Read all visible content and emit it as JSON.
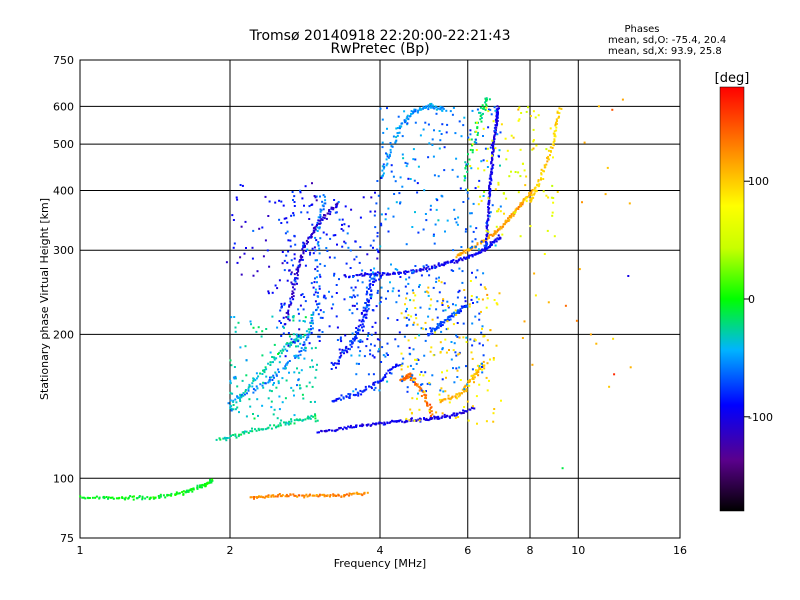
{
  "chart_data": {
    "type": "scatter",
    "title": "Tromsø 20140918 22:20:00-22:21:43",
    "subtitle": "RwPretec (Bp)",
    "xlabel": "Frequency [MHz]",
    "ylabel": "Stationary phase Virtual Height [km]",
    "x_scale": "log",
    "y_scale": "log",
    "xlim": [
      1,
      16
    ],
    "ylim": [
      75,
      750
    ],
    "x_ticks": [
      "1",
      "2",
      "4",
      "6",
      "8",
      "10",
      "16"
    ],
    "x_tick_values": [
      1,
      2,
      4,
      6,
      8,
      10,
      16
    ],
    "y_ticks": [
      "75",
      "100",
      "200",
      "300",
      "400",
      "500",
      "600",
      "750"
    ],
    "y_tick_values": [
      75,
      100,
      200,
      300,
      400,
      500,
      600,
      750
    ],
    "grid": true,
    "phases_box": {
      "title": "Phases",
      "line_o": "mean, sd,O: -75.4, 20.4",
      "line_x": "mean, sd,X: 93.9, 25.8"
    },
    "colorbar": {
      "label": "[deg]",
      "range": [
        -180,
        180
      ],
      "ticks": [
        "100",
        "0",
        "-100"
      ],
      "tick_values": [
        100,
        0,
        -100
      ],
      "colormap": "rainbow (black-purple-blue-cyan-green-yellow-orange-red)"
    },
    "traces": [
      {
        "name": "",
        "phase": -5,
        "spread": 0.012,
        "points": [
          [
            1.0,
            91
          ],
          [
            1.2,
            91
          ],
          [
            1.4,
            91
          ],
          [
            1.6,
            93
          ],
          [
            1.75,
            96
          ],
          [
            1.85,
            99
          ]
        ]
      },
      {
        "name": "",
        "phase": 130,
        "spread": 0.01,
        "points": [
          [
            2.2,
            91
          ],
          [
            2.5,
            92
          ],
          [
            2.9,
            92
          ],
          [
            3.3,
            92
          ],
          [
            3.8,
            93
          ]
        ]
      },
      {
        "name": "",
        "phase": -30,
        "spread": 0.015,
        "points": [
          [
            1.9,
            120
          ],
          [
            2.2,
            125
          ],
          [
            2.6,
            130
          ],
          [
            3.0,
            135
          ]
        ]
      },
      {
        "name": "",
        "phase": -70,
        "spread": 0.02,
        "points": [
          [
            2.0,
            145
          ],
          [
            2.4,
            160
          ],
          [
            2.8,
            185
          ],
          [
            3.0,
            230
          ],
          [
            3.0,
            330
          ],
          [
            3.1,
            390
          ]
        ]
      },
      {
        "name": "",
        "phase": -40,
        "spread": 0.015,
        "points": [
          [
            2.0,
            140
          ],
          [
            2.3,
            165
          ],
          [
            2.6,
            190
          ],
          [
            2.8,
            200
          ]
        ]
      },
      {
        "name": "",
        "phase": -110,
        "spread": 0.012,
        "points": [
          [
            3.0,
            125
          ],
          [
            3.5,
            128
          ],
          [
            4.0,
            130
          ],
          [
            4.5,
            132
          ],
          [
            5.0,
            133
          ],
          [
            5.5,
            135
          ],
          [
            6.2,
            140
          ]
        ]
      },
      {
        "name": "",
        "phase": -95,
        "spread": 0.015,
        "points": [
          [
            3.2,
            145
          ],
          [
            3.6,
            150
          ],
          [
            4.0,
            160
          ],
          [
            4.4,
            175
          ]
        ]
      },
      {
        "name": "",
        "phase": -105,
        "spread": 0.012,
        "points": [
          [
            3.4,
            265
          ],
          [
            4.0,
            268
          ],
          [
            4.6,
            270
          ],
          [
            5.2,
            278
          ],
          [
            5.7,
            285
          ],
          [
            6.2,
            293
          ],
          [
            6.6,
            305
          ],
          [
            7.0,
            320
          ]
        ]
      },
      {
        "name": "",
        "phase": -90,
        "spread": 0.02,
        "points": [
          [
            3.2,
            170
          ],
          [
            3.5,
            190
          ],
          [
            3.7,
            210
          ],
          [
            3.8,
            240
          ],
          [
            3.9,
            270
          ]
        ]
      },
      {
        "name": "",
        "phase": 120,
        "spread": 0.01,
        "points": [
          [
            5.7,
            292
          ],
          [
            6.2,
            305
          ],
          [
            6.8,
            325
          ],
          [
            7.2,
            345
          ],
          [
            7.6,
            370
          ],
          [
            8.1,
            400
          ]
        ]
      },
      {
        "name": "",
        "phase": -110,
        "spread": 0.008,
        "points": [
          [
            6.5,
            300
          ],
          [
            6.6,
            350
          ],
          [
            6.65,
            400
          ],
          [
            6.7,
            450
          ],
          [
            6.75,
            500
          ],
          [
            6.85,
            550
          ],
          [
            6.9,
            600
          ]
        ]
      },
      {
        "name": "",
        "phase": 140,
        "spread": 0.015,
        "points": [
          [
            4.4,
            160
          ],
          [
            4.6,
            165
          ],
          [
            4.9,
            150
          ],
          [
            5.1,
            135
          ]
        ]
      },
      {
        "name": "",
        "phase": 110,
        "spread": 0.015,
        "points": [
          [
            5.3,
            145
          ],
          [
            5.8,
            150
          ],
          [
            6.2,
            165
          ],
          [
            6.5,
            175
          ]
        ]
      },
      {
        "name": "",
        "phase": -60,
        "spread": 0.018,
        "points": [
          [
            4.0,
            420
          ],
          [
            4.3,
            520
          ],
          [
            4.6,
            580
          ],
          [
            5.0,
            600
          ],
          [
            5.4,
            590
          ]
        ]
      },
      {
        "name": "",
        "phase": -20,
        "spread": 0.02,
        "points": [
          [
            5.9,
            420
          ],
          [
            6.3,
            560
          ],
          [
            6.6,
            630
          ]
        ]
      },
      {
        "name": "",
        "phase": 100,
        "spread": 0.015,
        "points": [
          [
            8.0,
            380
          ],
          [
            8.4,
            420
          ],
          [
            8.9,
            500
          ],
          [
            9.2,
            600
          ]
        ]
      },
      {
        "name": "",
        "phase": -120,
        "spread": 0.015,
        "points": [
          [
            2.6,
            210
          ],
          [
            2.7,
            260
          ],
          [
            2.8,
            300
          ],
          [
            3.0,
            340
          ],
          [
            3.3,
            380
          ]
        ]
      },
      {
        "name": "",
        "phase": -80,
        "spread": 0.018,
        "points": [
          [
            5.0,
            200
          ],
          [
            5.3,
            210
          ],
          [
            5.6,
            220
          ],
          [
            6.0,
            230
          ]
        ]
      }
    ],
    "scatter_clouds": [
      {
        "x": [
          2.5,
          4.0
        ],
        "y": [
          180,
          400
        ],
        "phase": -90,
        "count": 260
      },
      {
        "x": [
          3.5,
          6.5
        ],
        "y": [
          150,
          280
        ],
        "phase": -75,
        "count": 220
      },
      {
        "x": [
          2.0,
          3.0
        ],
        "y": [
          130,
          220
        ],
        "phase": -40,
        "count": 150
      },
      {
        "x": [
          4.0,
          7.0
        ],
        "y": [
          300,
          600
        ],
        "phase": -70,
        "count": 180
      },
      {
        "x": [
          4.4,
          7.0
        ],
        "y": [
          130,
          260
        ],
        "phase": 95,
        "count": 140
      },
      {
        "x": [
          6.0,
          9.0
        ],
        "y": [
          320,
          600
        ],
        "phase": 70,
        "count": 90
      },
      {
        "x": [
          7.5,
          13.0
        ],
        "y": [
          150,
          650
        ],
        "phase": 110,
        "count": 25
      },
      {
        "x": [
          1.9,
          3.0
        ],
        "y": [
          240,
          420
        ],
        "phase": -110,
        "count": 60
      }
    ],
    "isolated_points": [
      {
        "x": 11.8,
        "y": 165,
        "phase": 165
      },
      {
        "x": 12.6,
        "y": 265,
        "phase": -110
      },
      {
        "x": 10.6,
        "y": 200,
        "phase": 120
      },
      {
        "x": 9.3,
        "y": 105,
        "phase": -15
      },
      {
        "x": 11.0,
        "y": 600,
        "phase": 110
      },
      {
        "x": 11.7,
        "y": 590,
        "phase": 150
      }
    ]
  }
}
